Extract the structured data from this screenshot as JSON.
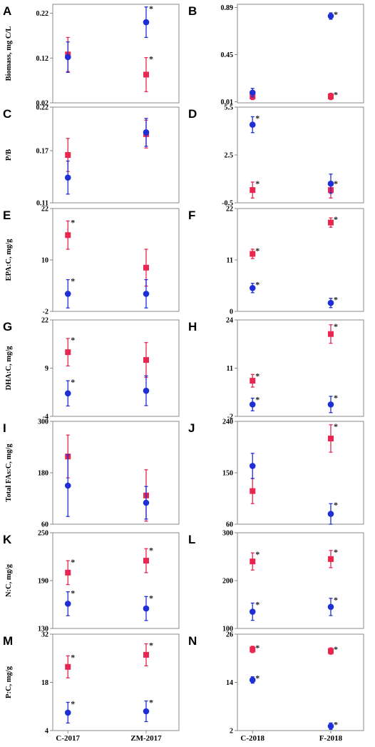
{
  "colors": {
    "series_a": "#e8264f",
    "series_b": "#1f2fd6",
    "frame": "#888888"
  },
  "xticks_left": [
    "C-2017",
    "ZM-2017"
  ],
  "xticks_right": [
    "C-2018",
    "F-2018"
  ],
  "chart_data": [
    {
      "panel": "A",
      "type": "scatter",
      "ylabel": "Biomass, mg C/L",
      "ylim": [
        0.02,
        0.24
      ],
      "yticks": [
        "0.22",
        "0.12",
        "0.02"
      ],
      "ytick_values": [
        0.22,
        0.12,
        0.02
      ],
      "categories": [
        "C-2017",
        "ZM-2017"
      ],
      "series": [
        {
          "marker": "square",
          "values": [
            0.128,
            0.083
          ],
          "errors": [
            0.038,
            0.038
          ],
          "sig": [
            "",
            "*"
          ]
        },
        {
          "marker": "circle",
          "values": [
            0.122,
            0.2
          ],
          "errors": [
            0.034,
            0.034
          ],
          "sig": [
            "",
            "*"
          ]
        }
      ]
    },
    {
      "panel": "B",
      "type": "scatter",
      "ylabel": "",
      "ylim": [
        0.0,
        0.92
      ],
      "yticks": [
        "0.89",
        "0.45",
        "0.01"
      ],
      "ytick_values": [
        0.89,
        0.45,
        0.01
      ],
      "categories": [
        "C-2018",
        "F-2018"
      ],
      "series": [
        {
          "marker": "square",
          "values": [
            0.06,
            0.06
          ],
          "errors": [
            0.03,
            0.03
          ],
          "sig": [
            "",
            "*"
          ]
        },
        {
          "marker": "circle",
          "values": [
            0.095,
            0.81
          ],
          "errors": [
            0.04,
            0.03
          ],
          "sig": [
            "",
            "*"
          ]
        }
      ]
    },
    {
      "panel": "C",
      "type": "scatter",
      "ylabel": "P/B",
      "ylim": [
        0.11,
        0.22
      ],
      "yticks": [
        "0.22",
        "0.17",
        "0.11"
      ],
      "ytick_values": [
        0.22,
        0.17,
        0.11
      ],
      "categories": [
        "C-2017",
        "ZM-2017"
      ],
      "series": [
        {
          "marker": "square",
          "values": [
            0.165,
            0.189
          ],
          "errors": [
            0.019,
            0.016
          ],
          "sig": [
            "",
            ""
          ]
        },
        {
          "marker": "circle",
          "values": [
            0.139,
            0.191
          ],
          "errors": [
            0.019,
            0.016
          ],
          "sig": [
            "",
            ""
          ]
        }
      ]
    },
    {
      "panel": "D",
      "type": "scatter",
      "ylabel": "",
      "ylim": [
        -0.5,
        5.5
      ],
      "yticks": [
        "5.5",
        "2.5",
        "-0.5"
      ],
      "ytick_values": [
        5.5,
        2.5,
        -0.5
      ],
      "categories": [
        "C-2018",
        "F-2018"
      ],
      "series": [
        {
          "marker": "square",
          "values": [
            0.3,
            0.3
          ],
          "errors": [
            0.5,
            0.5
          ],
          "sig": [
            "*",
            "*"
          ]
        },
        {
          "marker": "circle",
          "values": [
            4.4,
            0.7
          ],
          "errors": [
            0.5,
            0.6
          ],
          "sig": [
            "*",
            ""
          ]
        }
      ]
    },
    {
      "panel": "E",
      "type": "scatter",
      "ylabel": "EPA:C, mg/g",
      "ylim": [
        -2,
        22
      ],
      "yticks": [
        "22",
        "10",
        "-2"
      ],
      "ytick_values": [
        22,
        10,
        -2
      ],
      "categories": [
        "C-2017",
        "ZM-2017"
      ],
      "series": [
        {
          "marker": "square",
          "values": [
            15.8,
            8.2
          ],
          "errors": [
            3.3,
            4.3
          ],
          "sig": [
            "*",
            ""
          ]
        },
        {
          "marker": "circle",
          "values": [
            2.1,
            2.1
          ],
          "errors": [
            3.3,
            3.3
          ],
          "sig": [
            "*",
            ""
          ]
        }
      ]
    },
    {
      "panel": "F",
      "type": "scatter",
      "ylabel": "",
      "ylim": [
        0,
        22
      ],
      "yticks": [
        "22",
        "11",
        "0"
      ],
      "ytick_values": [
        22,
        11,
        0
      ],
      "categories": [
        "C-2018",
        "F-2018"
      ],
      "series": [
        {
          "marker": "square",
          "values": [
            12.3,
            19.0
          ],
          "errors": [
            1.0,
            1.0
          ],
          "sig": [
            "*",
            "*"
          ]
        },
        {
          "marker": "circle",
          "values": [
            5.0,
            1.8
          ],
          "errors": [
            1.0,
            1.0
          ],
          "sig": [
            "*",
            "*"
          ]
        }
      ]
    },
    {
      "panel": "G",
      "type": "scatter",
      "ylabel": "DHA:C, mg/g",
      "ylim": [
        -4,
        22
      ],
      "yticks": [
        "22",
        "9",
        "-4"
      ],
      "ytick_values": [
        22,
        9,
        -4
      ],
      "categories": [
        "C-2017",
        "ZM-2017"
      ],
      "series": [
        {
          "marker": "square",
          "values": [
            13.3,
            11.2
          ],
          "errors": [
            3.7,
            4.7
          ],
          "sig": [
            "*",
            ""
          ]
        },
        {
          "marker": "circle",
          "values": [
            2.2,
            2.9
          ],
          "errors": [
            3.4,
            4.0
          ],
          "sig": [
            "*",
            ""
          ]
        }
      ]
    },
    {
      "panel": "H",
      "type": "scatter",
      "ylabel": "",
      "ylim": [
        -2,
        24
      ],
      "yticks": [
        "24",
        "11",
        "-2"
      ],
      "ytick_values": [
        24,
        11,
        -2
      ],
      "categories": [
        "C-2018",
        "F-2018"
      ],
      "series": [
        {
          "marker": "square",
          "values": [
            7.6,
            20.2
          ],
          "errors": [
            1.7,
            2.5
          ],
          "sig": [
            "*",
            "*"
          ]
        },
        {
          "marker": "circle",
          "values": [
            1.2,
            1.2
          ],
          "errors": [
            1.7,
            2.2
          ],
          "sig": [
            "*",
            "*"
          ]
        }
      ]
    },
    {
      "panel": "I",
      "type": "scatter",
      "ylabel": "Total FAs:C, mg/g",
      "ylim": [
        60,
        300
      ],
      "yticks": [
        "300",
        "180",
        "60"
      ],
      "ytick_values": [
        300,
        180,
        60
      ],
      "categories": [
        "C-2017",
        "ZM-2017"
      ],
      "series": [
        {
          "marker": "square",
          "values": [
            218,
            127
          ],
          "errors": [
            50,
            60
          ],
          "sig": [
            "",
            ""
          ]
        },
        {
          "marker": "circle",
          "values": [
            150,
            110
          ],
          "errors": [
            72,
            38
          ],
          "sig": [
            "",
            ""
          ]
        }
      ]
    },
    {
      "panel": "J",
      "type": "scatter",
      "ylabel": "",
      "ylim": [
        60,
        240
      ],
      "yticks": [
        "240",
        "150",
        "60"
      ],
      "ytick_values": [
        240,
        150,
        60
      ],
      "categories": [
        "C-2018",
        "F-2018"
      ],
      "series": [
        {
          "marker": "square",
          "values": [
            118,
            210
          ],
          "errors": [
            22,
            24
          ],
          "sig": [
            "",
            "*"
          ]
        },
        {
          "marker": "circle",
          "values": [
            162,
            78
          ],
          "errors": [
            22,
            18
          ],
          "sig": [
            "",
            "*"
          ]
        }
      ]
    },
    {
      "panel": "K",
      "type": "scatter",
      "ylabel": "N:C, mg/g",
      "ylim": [
        130,
        250
      ],
      "yticks": [
        "250",
        "190",
        "130"
      ],
      "ytick_values": [
        250,
        190,
        130
      ],
      "categories": [
        "C-2017",
        "ZM-2017"
      ],
      "series": [
        {
          "marker": "square",
          "values": [
            200,
            215
          ],
          "errors": [
            15,
            15
          ],
          "sig": [
            "*",
            "*"
          ]
        },
        {
          "marker": "circle",
          "values": [
            161,
            155
          ],
          "errors": [
            15,
            15
          ],
          "sig": [
            "*",
            "*"
          ]
        }
      ]
    },
    {
      "panel": "L",
      "type": "scatter",
      "ylabel": "",
      "ylim": [
        100,
        300
      ],
      "yticks": [
        "300",
        "200",
        "100"
      ],
      "ytick_values": [
        300,
        200,
        100
      ],
      "categories": [
        "C-2018",
        "F-2018"
      ],
      "series": [
        {
          "marker": "square",
          "values": [
            240,
            245
          ],
          "errors": [
            18,
            18
          ],
          "sig": [
            "*",
            "*"
          ]
        },
        {
          "marker": "circle",
          "values": [
            135,
            145
          ],
          "errors": [
            18,
            18
          ],
          "sig": [
            "*",
            "*"
          ]
        }
      ]
    },
    {
      "panel": "M",
      "type": "scatter",
      "ylabel": "P:C, mg/g",
      "ylim": [
        4,
        32
      ],
      "yticks": [
        "32",
        "18",
        "4"
      ],
      "ytick_values": [
        32,
        18,
        4
      ],
      "categories": [
        "C-2017",
        "ZM-2017"
      ],
      "series": [
        {
          "marker": "square",
          "values": [
            22.5,
            26.0
          ],
          "errors": [
            3.2,
            3.2
          ],
          "sig": [
            "*",
            "*"
          ]
        },
        {
          "marker": "circle",
          "values": [
            9.2,
            9.6
          ],
          "errors": [
            3.0,
            3.0
          ],
          "sig": [
            "*",
            "*"
          ]
        }
      ]
    },
    {
      "panel": "N",
      "type": "scatter",
      "ylabel": "",
      "ylim": [
        2,
        26
      ],
      "yticks": [
        "26",
        "14",
        "2"
      ],
      "ytick_values": [
        26,
        14,
        2
      ],
      "categories": [
        "C-2018",
        "F-2018"
      ],
      "series": [
        {
          "marker": "square",
          "values": [
            22.2,
            21.8
          ],
          "errors": [
            0.8,
            0.8
          ],
          "sig": [
            "*",
            "*"
          ]
        },
        {
          "marker": "circle",
          "values": [
            14.6,
            3.1
          ],
          "errors": [
            0.8,
            0.8
          ],
          "sig": [
            "*",
            "*"
          ]
        }
      ]
    }
  ]
}
